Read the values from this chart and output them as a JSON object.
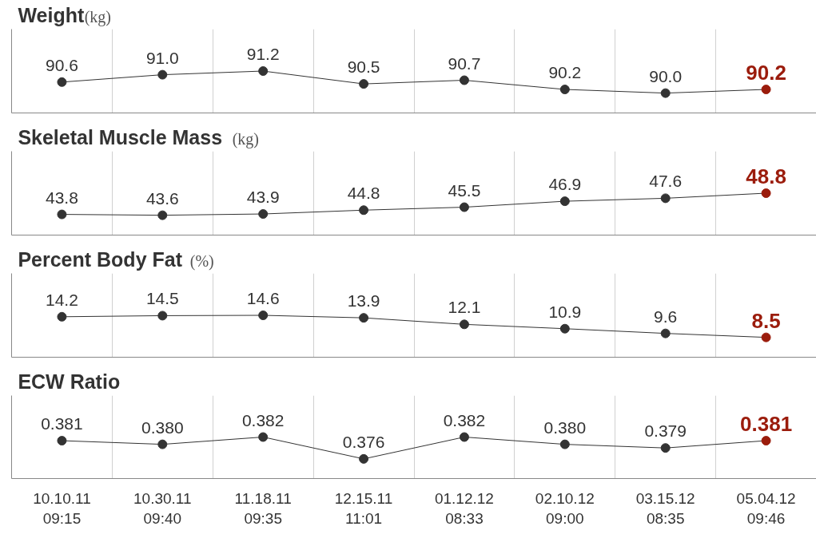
{
  "chart_data": [
    {
      "type": "line",
      "title": "Weight",
      "subtitle": "(kg)",
      "categories": [
        null,
        null,
        null,
        null,
        null,
        null,
        null,
        null
      ],
      "values": [
        90.6,
        91.0,
        91.2,
        90.5,
        90.7,
        90.2,
        90.0,
        90.2
      ],
      "value_labels": [
        "90.6",
        "91.0",
        "91.2",
        "90.5",
        "90.7",
        "90.2",
        "90.0",
        "90.2"
      ],
      "color": "#333333",
      "colors": [
        "#333333",
        "#333333",
        "#333333",
        "#333333",
        "#333333",
        "#333333",
        "#333333",
        "#9b1c0c"
      ],
      "data_labels": true,
      "marker": "circle",
      "grid": "x",
      "tick_labels": false
    },
    {
      "type": "line",
      "title": "Skeletal Muscle Mass",
      "subtitle": "(kg)",
      "categories": [
        null,
        null,
        null,
        null,
        null,
        null,
        null,
        null
      ],
      "values": [
        43.8,
        43.6,
        43.9,
        44.8,
        45.5,
        46.9,
        47.6,
        48.8
      ],
      "value_labels": [
        "43.8",
        "43.6",
        "43.9",
        "44.8",
        "45.5",
        "46.9",
        "47.6",
        "48.8"
      ],
      "color": "#333333",
      "colors": [
        "#333333",
        "#333333",
        "#333333",
        "#333333",
        "#333333",
        "#333333",
        "#333333",
        "#9b1c0c"
      ],
      "data_labels": true,
      "marker": "circle",
      "grid": "x",
      "tick_labels": false
    },
    {
      "type": "line",
      "title": "Percent Body Fat",
      "subtitle": "(%)",
      "categories": [
        null,
        null,
        null,
        null,
        null,
        null,
        null,
        null
      ],
      "values": [
        14.2,
        14.5,
        14.6,
        13.9,
        12.1,
        10.9,
        9.6,
        8.5
      ],
      "value_labels": [
        "14.2",
        "14.5",
        "14.6",
        "13.9",
        "12.1",
        "10.9",
        "9.6",
        "8.5"
      ],
      "color": "#333333",
      "colors": [
        "#333333",
        "#333333",
        "#333333",
        "#333333",
        "#333333",
        "#333333",
        "#333333",
        "#9b1c0c"
      ],
      "data_labels": true,
      "marker": "circle",
      "grid": "x",
      "tick_labels": false
    },
    {
      "type": "line",
      "title": "ECW Ratio",
      "categories": [
        "10.10.11\n09:15",
        "10.30.11\n09:40",
        "11.18.11\n09:35",
        "12.15.11\n11:01",
        "01.12.12\n08:33",
        "02.10.12\n09:00",
        "03.15.12\n08:35",
        "05.04.12\n09:46"
      ],
      "values": [
        0.381,
        0.38,
        0.382,
        0.376,
        0.382,
        0.38,
        0.379,
        0.381
      ],
      "value_labels": [
        "0.381",
        "0.380",
        "0.382",
        "0.376",
        "0.382",
        "0.380",
        "0.379",
        "0.381"
      ],
      "color": "#333333",
      "colors": [
        "#333333",
        "#333333",
        "#333333",
        "#333333",
        "#333333",
        "#333333",
        "#333333",
        "#9b1c0c"
      ],
      "data_labels": true,
      "marker": "circle",
      "grid": "x",
      "tick_labels": "x"
    }
  ]
}
